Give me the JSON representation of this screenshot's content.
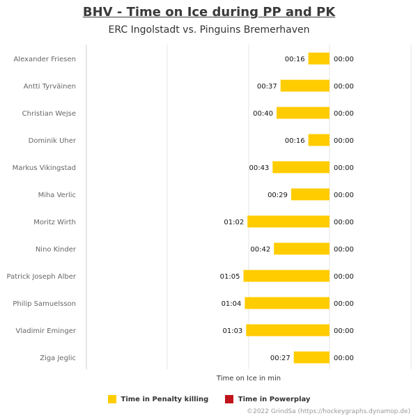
{
  "title": "BHV - Time on Ice during PP and PK",
  "subtitle": "ERC Ingolstadt vs. Pinguins Bremerhaven",
  "credit": "©2022 GrindSa (https://hockeygraphs.dynamop.de)",
  "colors": {
    "pk": "#FFCC00",
    "pp": "#C0141A",
    "grid": "#e6e6e6",
    "axis": "#cccccc"
  },
  "chart_data": {
    "type": "bar",
    "orientation": "horizontal",
    "xlabel": "Time on Ice in min",
    "categories": [
      "Alexander Friesen",
      "Antti Tyrväinen",
      "Christian Wejse",
      "Dominik Uher",
      "Markus Vikingstad",
      "Miha Verlic",
      "Moritz Wirth",
      "Nino Kinder",
      "Patrick Joseph Alber",
      "Philip Samuelsson",
      "Vladimir Eminger",
      "Ziga Jeglic"
    ],
    "series": [
      {
        "name": "Time in Penalty killing",
        "values_seconds": [
          16,
          37,
          40,
          16,
          43,
          29,
          62,
          42,
          65,
          64,
          63,
          27
        ],
        "labels": [
          "00:16",
          "00:37",
          "00:40",
          "00:16",
          "00:43",
          "00:29",
          "01:02",
          "00:42",
          "01:05",
          "01:04",
          "01:03",
          "00:27"
        ]
      },
      {
        "name": "Time in Powerplay",
        "values_seconds": [
          0,
          0,
          0,
          0,
          0,
          0,
          0,
          0,
          0,
          0,
          0,
          0
        ],
        "labels": [
          "00:00",
          "00:00",
          "00:00",
          "00:00",
          "00:00",
          "00:00",
          "00:00",
          "00:00",
          "00:00",
          "00:00",
          "00:00",
          "00:00"
        ]
      }
    ],
    "legend_position": "bottom",
    "grid": true
  }
}
